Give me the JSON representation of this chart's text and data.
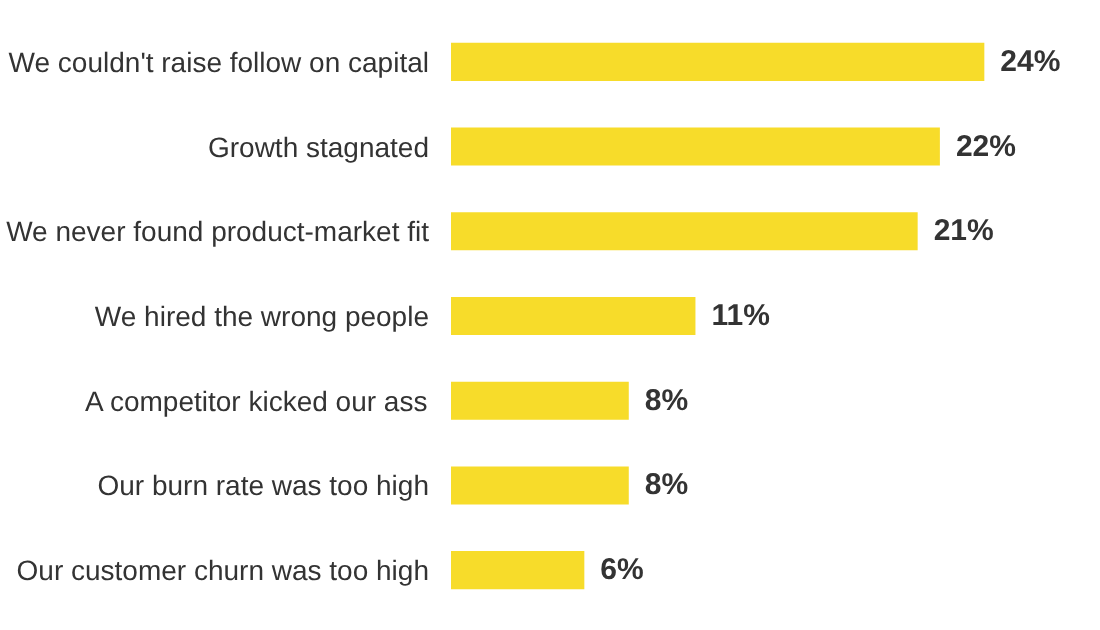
{
  "chart_data": {
    "type": "bar",
    "orientation": "horizontal",
    "categories": [
      "We couldn't raise follow on capital",
      "Growth stagnated",
      "We never found product-market fit",
      "We hired the wrong people",
      "A competitor kicked our ass",
      "Our burn rate was too high",
      "Our customer churn was too high"
    ],
    "values": [
      24,
      22,
      21,
      11,
      8,
      8,
      6
    ],
    "value_labels": [
      "24%",
      "22%",
      "21%",
      "11%",
      "8%",
      "8%",
      "6%"
    ],
    "color": "#f7dc2a",
    "tick_labels": "y",
    "grid": false
  }
}
